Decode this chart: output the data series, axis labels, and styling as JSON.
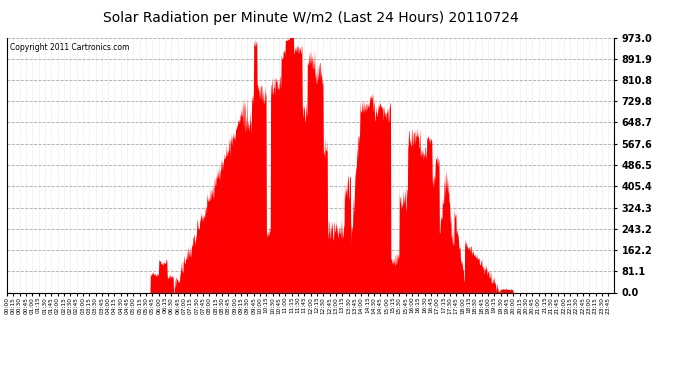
{
  "title": "Solar Radiation per Minute W/m2 (Last 24 Hours) 20110724",
  "copyright": "Copyright 2011 Cartronics.com",
  "yticks": [
    0.0,
    81.1,
    162.2,
    243.2,
    324.3,
    405.4,
    486.5,
    567.6,
    648.7,
    729.8,
    810.8,
    891.9,
    973.0
  ],
  "ymax": 973.0,
  "fill_color": "#FF0000",
  "bg_color": "#FFFFFF",
  "title_color": "#000000",
  "copyright_color": "#000000"
}
